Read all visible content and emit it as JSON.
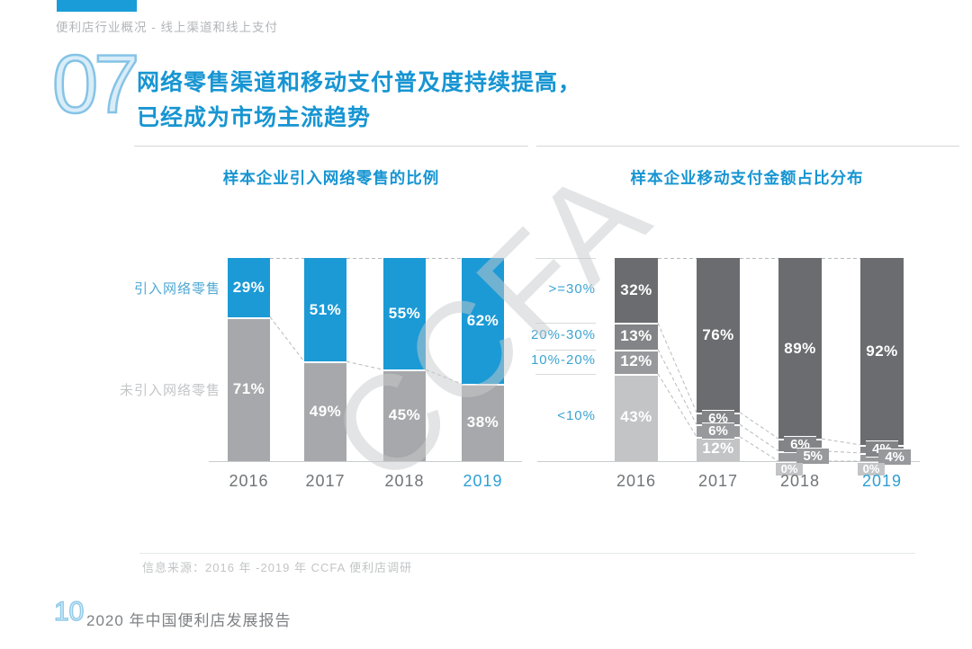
{
  "theme": {
    "accent": "#2f9fd4",
    "title_blue": "#1795d2",
    "brand_blue": "#1a9cd8",
    "year_gray": "#717477",
    "axis_line": "#c9cbcd",
    "row_line": "#d7d9da",
    "connector": "#b8babc"
  },
  "header": {
    "eyebrow": "便利店行业概况 - 线上渠道和线上支付",
    "section_number": "07",
    "title_line1": "网络零售渠道和移动支付普及度持续提高，",
    "title_line2": "已经成为市场主流趋势"
  },
  "watermark": "CCFA",
  "chart_data": [
    {
      "type": "bar",
      "stacked": true,
      "title": "样本企业引入网络零售的比例",
      "categories": [
        "2016",
        "2017",
        "2018",
        "2019"
      ],
      "unit": "%",
      "ylim": [
        0,
        100
      ],
      "grid": false,
      "legend_position": "left-row-labels",
      "series": [
        {
          "name": "引入网络零售",
          "values": [
            29,
            51,
            55,
            62
          ],
          "color": "#1b9ad6",
          "label_color": "#4fa8d4"
        },
        {
          "name": "未引入网络零售",
          "values": [
            71,
            49,
            45,
            38
          ],
          "color": "#a6a8ab",
          "label_color": "#c4c6c8"
        }
      ]
    },
    {
      "type": "bar",
      "stacked": true,
      "title": "样本企业移动支付金额占比分布",
      "categories": [
        "2016",
        "2017",
        "2018",
        "2019"
      ],
      "unit": "%",
      "ylim": [
        0,
        100
      ],
      "grid": false,
      "legend_position": "left-row-labels",
      "series": [
        {
          "name": ">=30%",
          "values": [
            32,
            76,
            89,
            92
          ],
          "color": "#6a6c6f",
          "label_color": "#3ba3d1"
        },
        {
          "name": "20%-30%",
          "values": [
            13,
            6,
            6,
            4
          ],
          "color": "#828487",
          "label_color": "#3ba3d1"
        },
        {
          "name": "10%-20%",
          "values": [
            12,
            6,
            5,
            4
          ],
          "color": "#97999c",
          "label_color": "#3ba3d1"
        },
        {
          "name": "<10%",
          "values": [
            43,
            12,
            0,
            0
          ],
          "color": "#c2c4c6",
          "label_color": "#3ba3d1"
        }
      ]
    }
  ],
  "footer": {
    "source": "信息来源：2016 年 -2019 年 CCFA 便利店调研",
    "page_number": "10",
    "report_title": "2020 年中国便利店发展报告"
  }
}
